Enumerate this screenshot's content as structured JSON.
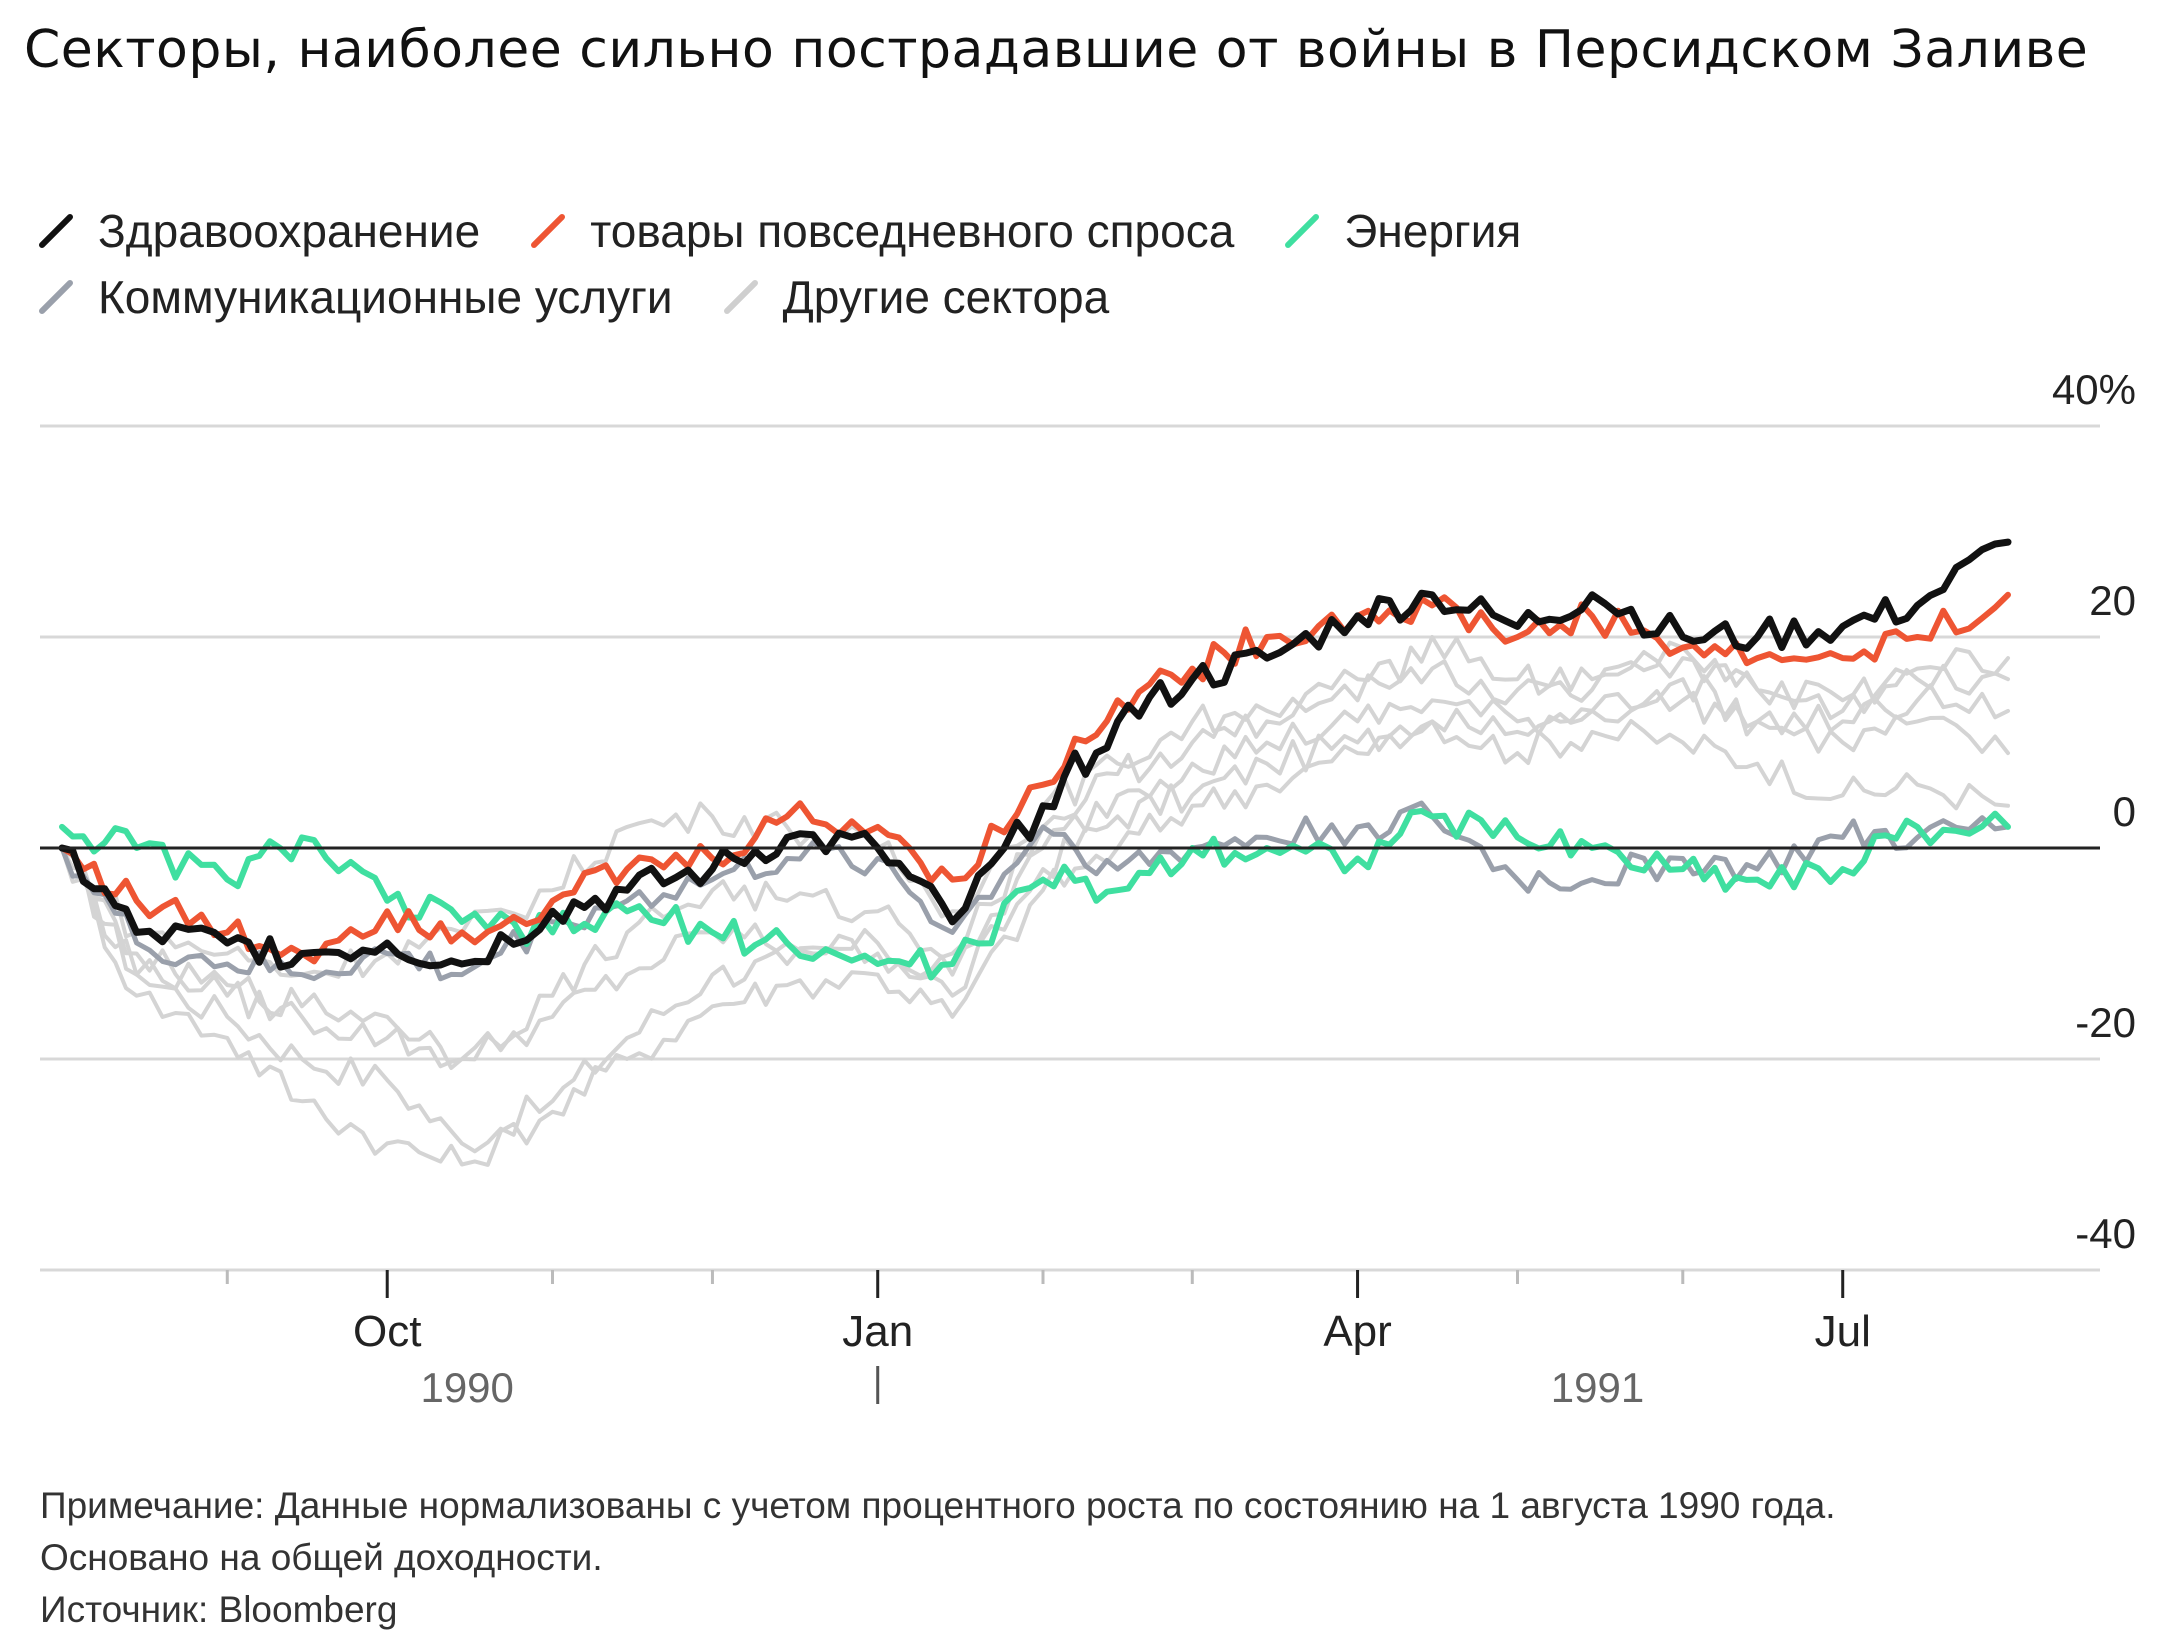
{
  "title": "Секторы, наиболее сильно пострадавшие от войны в Персидском Заливе",
  "legend": [
    {
      "label": "Здравоохранение",
      "color": "#111111"
    },
    {
      "label": "товары повседневного спроса",
      "color": "#ee5533"
    },
    {
      "label": "Энергия",
      "color": "#3fdfa0"
    },
    {
      "label": "Коммуникационные услуги",
      "color": "#9aa0ab"
    },
    {
      "label": "Другие сектора",
      "color": "#cfcfcf"
    }
  ],
  "chart_data": {
    "type": "line",
    "title": "Секторы, наиболее сильно пострадавшие от войны в Персидском Заливе",
    "xlabel": "",
    "ylabel": "",
    "ylim": [
      -40,
      40
    ],
    "xlim": [
      "1990-08-01",
      "1991-08-01"
    ],
    "y_ticks": [
      {
        "value": 40,
        "label": "40%"
      },
      {
        "value": 20,
        "label": "20"
      },
      {
        "value": 0,
        "label": "0"
      },
      {
        "value": -20,
        "label": "-20"
      },
      {
        "value": -40,
        "label": "-40"
      }
    ],
    "x_ticks": [
      {
        "date": "1990-10-01",
        "label": "Oct"
      },
      {
        "date": "1991-01-01",
        "label": "Jan"
      },
      {
        "date": "1991-04-01",
        "label": "Apr"
      },
      {
        "date": "1991-07-01",
        "label": "Jul"
      }
    ],
    "x_minor_ticks": [
      "1990-09-01",
      "1990-11-01",
      "1990-12-01",
      "1991-02-01",
      "1991-03-01",
      "1991-05-01",
      "1991-06-01"
    ],
    "year_labels": [
      {
        "date": "1990-10-16",
        "label": "1990"
      },
      {
        "date": "1991-05-16",
        "label": "1991"
      }
    ],
    "year_divider": "1991-01-01",
    "grid": true,
    "zero_line": true,
    "series": [
      {
        "name": "Другие сектора",
        "color": "#d4d4d4",
        "x": [
          "1990-08-01",
          "1990-08-15",
          "1990-09-01",
          "1990-09-15",
          "1990-10-01",
          "1990-10-15",
          "1990-11-01",
          "1990-11-15",
          "1990-12-01",
          "1990-12-15",
          "1991-01-01",
          "1991-01-15",
          "1991-02-01",
          "1991-02-15",
          "1991-03-01",
          "1991-03-15",
          "1991-04-01",
          "1991-04-15",
          "1991-05-01",
          "1991-05-15",
          "1991-06-01",
          "1991-06-15",
          "1991-07-01",
          "1991-07-15",
          "1991-08-01"
        ],
        "values": [
          0,
          -12,
          -16,
          -20,
          -22,
          -28,
          -24,
          -18,
          -12,
          -11,
          -9,
          -14,
          -2,
          3,
          5,
          8,
          10,
          12,
          9,
          11,
          10,
          8,
          5,
          6,
          4
        ]
      },
      {
        "name": "Другие сектора",
        "color": "#d4d4d4",
        "x": [
          "1990-08-01",
          "1990-08-15",
          "1990-09-01",
          "1990-09-15",
          "1990-10-01",
          "1990-10-15",
          "1990-11-01",
          "1990-11-15",
          "1990-12-01",
          "1990-12-15",
          "1991-01-01",
          "1991-01-15",
          "1991-02-01",
          "1991-02-15",
          "1991-03-01",
          "1991-03-15",
          "1991-04-01",
          "1991-04-15",
          "1991-05-01",
          "1991-05-15",
          "1991-06-01",
          "1991-06-15",
          "1991-07-01",
          "1991-07-15",
          "1991-08-01"
        ],
        "values": [
          0,
          -14,
          -18,
          -24,
          -28,
          -30,
          -25,
          -20,
          -15,
          -13,
          -12,
          -16,
          -4,
          0,
          4,
          6,
          9,
          12,
          11,
          13,
          16,
          12,
          10,
          12,
          9
        ]
      },
      {
        "name": "Другие сектора",
        "color": "#d4d4d4",
        "x": [
          "1990-08-01",
          "1990-08-15",
          "1990-09-01",
          "1990-09-15",
          "1990-10-01",
          "1990-10-15",
          "1990-11-01",
          "1990-11-15",
          "1990-12-01",
          "1990-12-15",
          "1991-01-01",
          "1991-01-15",
          "1991-02-01",
          "1991-02-15",
          "1991-03-01",
          "1991-03-15",
          "1991-04-01",
          "1991-04-15",
          "1991-05-01",
          "1991-05-15",
          "1991-06-01",
          "1991-06-15",
          "1991-07-01",
          "1991-07-15",
          "1991-08-01"
        ],
        "values": [
          0,
          -10,
          -14,
          -16,
          -18,
          -20,
          -16,
          -12,
          -8,
          -9,
          -10,
          -12,
          0,
          5,
          8,
          10,
          12,
          14,
          12,
          13,
          14,
          12,
          12,
          14,
          13
        ]
      },
      {
        "name": "Другие сектора",
        "color": "#d4d4d4",
        "x": [
          "1990-08-01",
          "1990-08-15",
          "1990-09-01",
          "1990-09-15",
          "1990-10-01",
          "1990-10-15",
          "1990-11-01",
          "1990-11-15",
          "1990-12-01",
          "1990-12-15",
          "1991-01-01",
          "1991-01-15",
          "1991-02-01",
          "1991-02-15",
          "1991-03-01",
          "1991-03-15",
          "1991-04-01",
          "1991-04-15",
          "1991-05-01",
          "1991-05-15",
          "1991-06-01",
          "1991-06-15",
          "1991-07-01",
          "1991-07-15",
          "1991-08-01"
        ],
        "values": [
          0,
          -8,
          -10,
          -12,
          -10,
          -8,
          -4,
          2,
          3,
          2,
          0,
          -6,
          4,
          8,
          12,
          12,
          16,
          17,
          15,
          16,
          18,
          15,
          14,
          16,
          16
        ]
      },
      {
        "name": "Другие сектора",
        "color": "#d4d4d4",
        "x": [
          "1990-08-01",
          "1990-08-15",
          "1990-09-01",
          "1990-09-15",
          "1990-10-01",
          "1990-10-15",
          "1990-11-01",
          "1990-11-15",
          "1990-12-01",
          "1990-12-15",
          "1991-01-01",
          "1991-01-15",
          "1991-02-01",
          "1991-02-15",
          "1991-03-01",
          "1991-03-15",
          "1991-04-01",
          "1991-04-15",
          "1991-05-01",
          "1991-05-15",
          "1991-06-01",
          "1991-06-15",
          "1991-07-01",
          "1991-07-15",
          "1991-08-01"
        ],
        "values": [
          0,
          -12,
          -13,
          -15,
          -16,
          -20,
          -14,
          -8,
          -4,
          -5,
          -6,
          -10,
          2,
          7,
          10,
          13,
          14,
          20,
          16,
          15,
          19,
          15,
          13,
          17,
          18
        ]
      },
      {
        "name": "Коммуникационные услуги",
        "color": "#9aa0ab",
        "x": [
          "1990-08-01",
          "1990-08-15",
          "1990-09-01",
          "1990-09-15",
          "1990-10-01",
          "1990-10-15",
          "1990-11-01",
          "1990-11-15",
          "1990-12-01",
          "1990-12-15",
          "1991-01-01",
          "1991-01-15",
          "1991-02-01",
          "1991-02-15",
          "1991-03-01",
          "1991-03-15",
          "1991-04-01",
          "1991-04-15",
          "1991-05-01",
          "1991-05-15",
          "1991-06-01",
          "1991-06-15",
          "1991-07-01",
          "1991-07-15",
          "1991-08-01"
        ],
        "values": [
          0,
          -9,
          -11,
          -12,
          -10,
          -12,
          -7,
          -5,
          -3,
          -1,
          -1,
          -8,
          2,
          -2,
          0,
          1,
          2,
          3,
          -3,
          -3,
          -1,
          -2,
          1,
          1,
          2
        ]
      },
      {
        "name": "Энергия",
        "color": "#3fdfa0",
        "x": [
          "1990-08-01",
          "1990-08-15",
          "1990-09-01",
          "1990-09-15",
          "1990-10-01",
          "1990-10-15",
          "1990-11-01",
          "1990-11-15",
          "1990-12-01",
          "1990-12-15",
          "1991-01-01",
          "1991-01-15",
          "1991-02-01",
          "1991-02-15",
          "1991-03-01",
          "1991-03-15",
          "1991-04-01",
          "1991-04-15",
          "1991-05-01",
          "1991-05-15",
          "1991-06-01",
          "1991-06-15",
          "1991-07-01",
          "1991-07-15",
          "1991-08-01"
        ],
        "values": [
          2,
          0,
          -3,
          1,
          -5,
          -7,
          -8,
          -6,
          -8,
          -9,
          -11,
          -11,
          -3,
          -4,
          0,
          0,
          -1,
          3,
          1,
          0,
          -2,
          -3,
          -2,
          2,
          2
        ]
      },
      {
        "name": "товары повседневного спроса",
        "color": "#ee5533",
        "x": [
          "1990-08-01",
          "1990-08-15",
          "1990-09-01",
          "1990-09-15",
          "1990-10-01",
          "1990-10-15",
          "1990-11-01",
          "1990-11-15",
          "1990-12-01",
          "1990-12-15",
          "1991-01-01",
          "1991-01-15",
          "1991-02-01",
          "1991-02-15",
          "1991-03-01",
          "1991-03-15",
          "1991-04-01",
          "1991-04-15",
          "1991-05-01",
          "1991-05-15",
          "1991-06-01",
          "1991-06-15",
          "1991-07-01",
          "1991-07-15",
          "1991-08-01"
        ],
        "values": [
          0,
          -5,
          -8,
          -10,
          -6,
          -8,
          -5,
          -2,
          -1,
          3,
          2,
          -3,
          6,
          14,
          17,
          20,
          22,
          23,
          20,
          22,
          19,
          18,
          18,
          20,
          24
        ]
      },
      {
        "name": "Здравоохранение",
        "color": "#111111",
        "x": [
          "1990-08-01",
          "1990-08-15",
          "1990-09-01",
          "1990-09-15",
          "1990-10-01",
          "1990-10-15",
          "1990-11-01",
          "1990-11-15",
          "1990-12-01",
          "1990-12-15",
          "1991-01-01",
          "1991-01-15",
          "1991-02-01",
          "1991-02-15",
          "1991-03-01",
          "1991-03-15",
          "1991-04-01",
          "1991-04-15",
          "1991-05-01",
          "1991-05-15",
          "1991-06-01",
          "1991-06-15",
          "1991-07-01",
          "1991-07-15",
          "1991-08-01"
        ],
        "values": [
          0,
          -8,
          -9,
          -10,
          -9,
          -11,
          -6,
          -4,
          -2,
          1,
          0,
          -7,
          4,
          12,
          16,
          18,
          22,
          24,
          21,
          24,
          20,
          20,
          21,
          23,
          29
        ]
      }
    ]
  },
  "notes": {
    "line1": "Примечание: Данные нормализованы с учетом процентного роста по состоянию на 1 августа 1990 года.",
    "line2": "Основано на общей доходности.",
    "source": "Источник: Bloomberg"
  }
}
